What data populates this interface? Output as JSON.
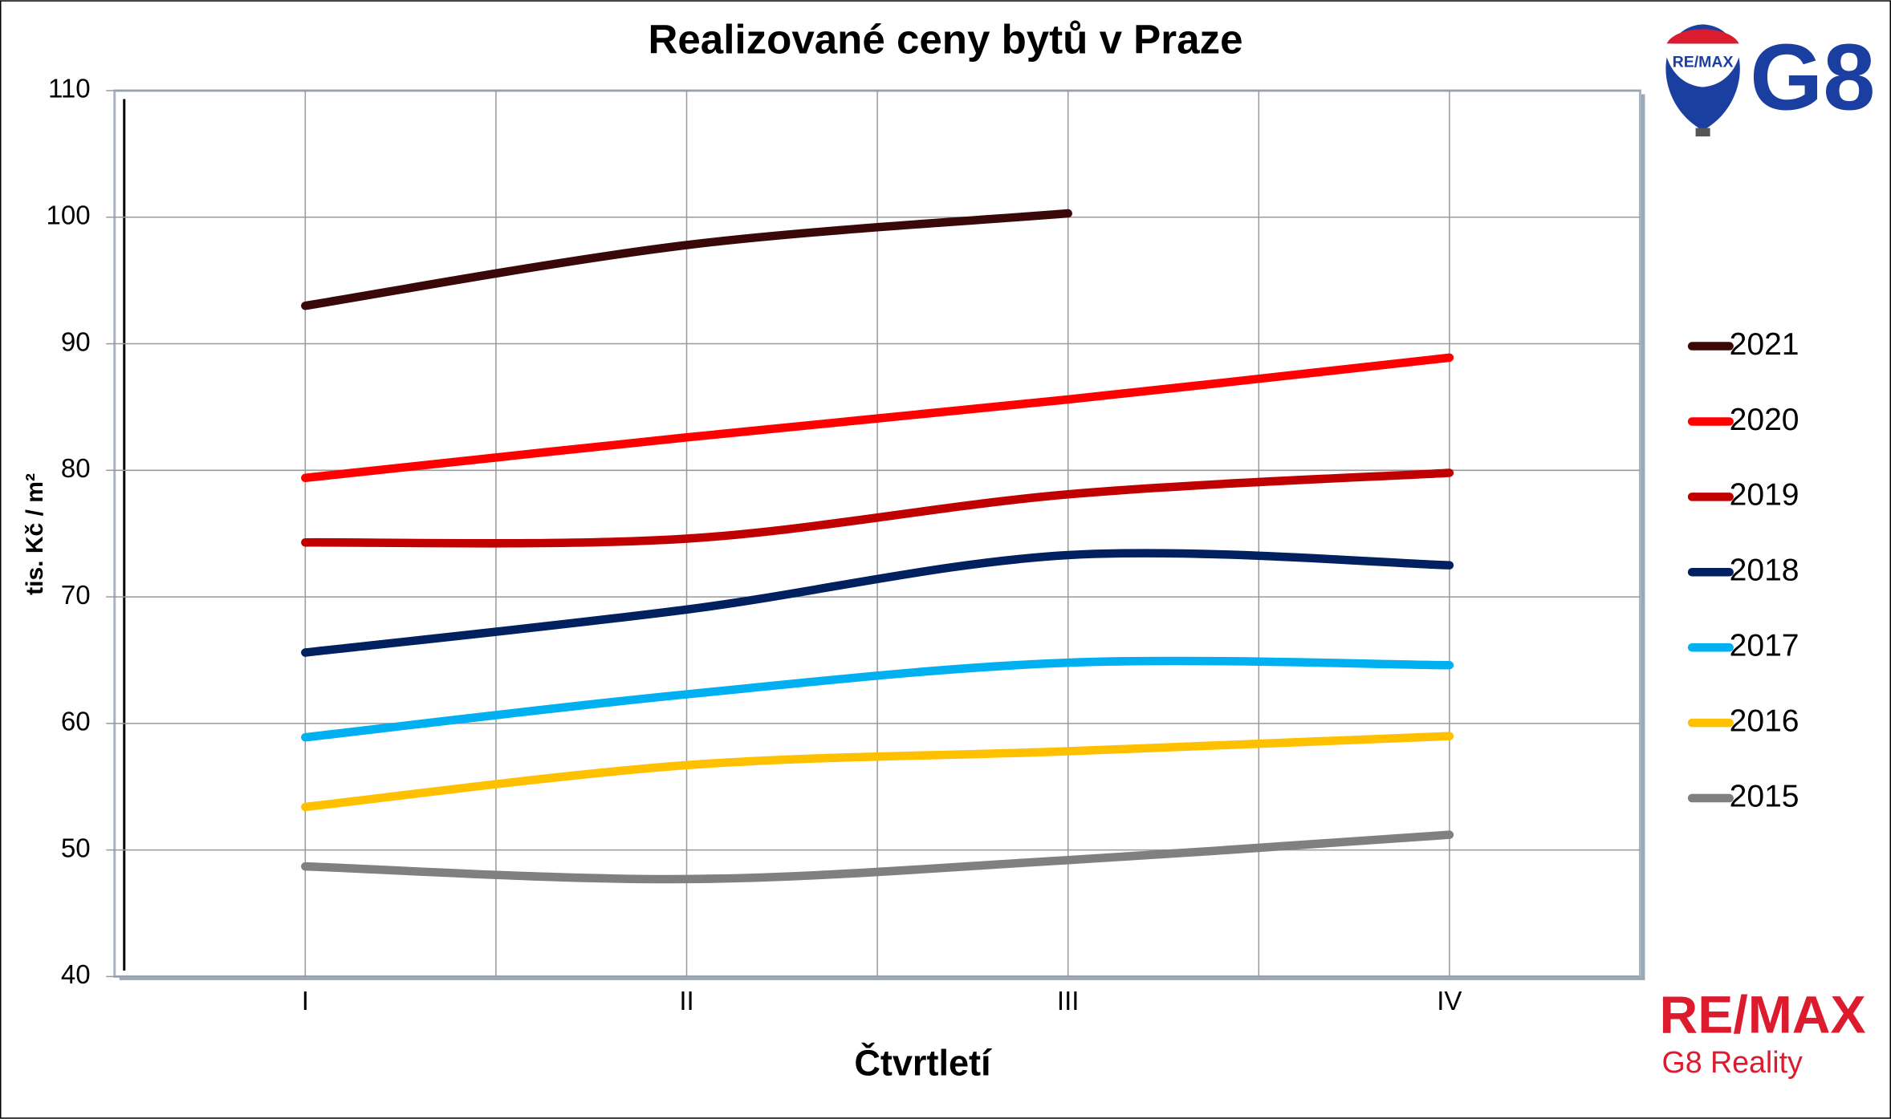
{
  "chart_data": {
    "type": "line",
    "title": "Realizované ceny bytů v Praze",
    "x_label": "Čtvrtletí",
    "y_label": "tis. Kč / m²",
    "categories": [
      "I",
      "II",
      "III",
      "IV"
    ],
    "series": [
      {
        "name": "2021",
        "color": "#3a0808",
        "values": [
          93,
          97.8,
          100.3,
          null
        ]
      },
      {
        "name": "2020",
        "color": "#ff0000",
        "values": [
          79.4,
          82.6,
          85.6,
          88.9
        ]
      },
      {
        "name": "2019",
        "color": "#c00000",
        "values": [
          74.3,
          74.6,
          78.1,
          79.8
        ]
      },
      {
        "name": "2018",
        "color": "#002060",
        "values": [
          65.6,
          69.0,
          73.3,
          72.5
        ]
      },
      {
        "name": "2017",
        "color": "#00b0f0",
        "values": [
          58.9,
          62.3,
          64.8,
          64.6
        ]
      },
      {
        "name": "2016",
        "color": "#ffc000",
        "values": [
          53.4,
          56.7,
          57.8,
          59.0
        ]
      },
      {
        "name": "2015",
        "color": "#808080",
        "values": [
          48.7,
          47.7,
          49.2,
          51.2
        ]
      }
    ],
    "ylim": [
      40,
      110
    ],
    "yticks": [
      40,
      50,
      60,
      70,
      80,
      90,
      100,
      110
    ],
    "grid": true,
    "legend": "right"
  },
  "branding": {
    "top_logo": "G8",
    "balloon_text": "RE/MAX",
    "bottom_logo": "RE/MAX",
    "bottom_subtitle": "G8 Reality"
  }
}
